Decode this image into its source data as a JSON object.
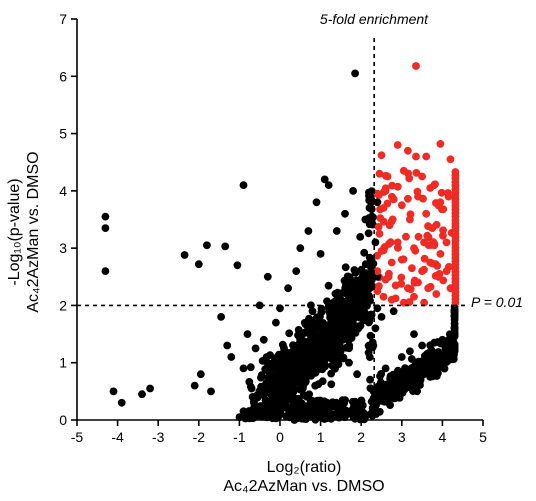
{
  "chart_data": {
    "type": "scatter",
    "xlabel_line1": "Log₂(ratio)",
    "xlabel_line2": "Ac₄2AzMan vs. DMSO",
    "ylabel_line1": "-Log₁₀(p-value)",
    "ylabel_line2": "Ac₄2AzMan vs. DMSO",
    "xlim": [
      -5,
      5
    ],
    "ylim": [
      0,
      7
    ],
    "xticks": [
      "-5",
      "-4",
      "-3",
      "-2",
      "-1",
      "0",
      "1",
      "2",
      "3",
      "4",
      "5"
    ],
    "yticks": [
      "0",
      "1",
      "2",
      "3",
      "4",
      "5",
      "6",
      "7"
    ],
    "colors": {
      "significant": "#ef2b24",
      "other": "#000000"
    },
    "vline": {
      "x": 2.32,
      "label": "5-fold enrichment"
    },
    "hline": {
      "y": 2.0,
      "label": "P = 0.01"
    },
    "series": [
      {
        "points": [
          [
            -4.3,
            3.55
          ],
          [
            -4.3,
            3.35
          ],
          [
            -4.3,
            2.6
          ],
          [
            -4.1,
            0.5
          ],
          [
            -3.9,
            0.3
          ],
          [
            -3.4,
            0.45
          ],
          [
            -3.2,
            0.55
          ],
          [
            -2.35,
            2.88
          ],
          [
            -2.1,
            0.6
          ],
          [
            -1.95,
            0.8
          ],
          [
            -1.7,
            0.5
          ],
          [
            -2.0,
            2.72
          ],
          [
            -1.8,
            3.05
          ],
          [
            -1.35,
            3.03
          ],
          [
            -1.05,
            2.7
          ],
          [
            -1.45,
            1.8
          ],
          [
            -1.3,
            1.3
          ],
          [
            -1.2,
            1.1
          ],
          [
            -0.9,
            0.9
          ],
          [
            -0.9,
            4.1
          ],
          [
            -0.5,
            2.0
          ],
          [
            -0.3,
            2.5
          ],
          [
            -0.6,
            1.25
          ],
          [
            -0.7,
            0.55
          ],
          [
            1.85,
            6.05
          ],
          [
            1.1,
            4.2
          ],
          [
            1.2,
            4.1
          ],
          [
            0.9,
            3.8
          ],
          [
            1.6,
            3.6
          ],
          [
            1.8,
            4.0
          ],
          [
            1.4,
            3.3
          ],
          [
            0.7,
            3.3
          ],
          [
            0.5,
            3.0
          ],
          [
            0.4,
            2.6
          ],
          [
            0.2,
            2.3
          ],
          [
            1.0,
            2.9
          ],
          [
            2.1,
            3.5
          ],
          [
            2.2,
            2.7
          ],
          [
            0.0,
            1.95
          ],
          [
            -0.1,
            1.7
          ],
          [
            0.3,
            0.05
          ],
          [
            0.6,
            0.1
          ],
          [
            -0.2,
            0.2
          ],
          [
            1.5,
            0.3
          ],
          [
            2.0,
            0.25
          ],
          [
            3.0,
            1.1
          ],
          [
            3.5,
            1.3
          ],
          [
            4.2,
            1.45
          ],
          [
            4.3,
            1.8
          ],
          [
            4.3,
            1.6
          ],
          [
            2.8,
            1.9
          ],
          [
            2.5,
            1.8
          ],
          [
            3.3,
            1.5
          ],
          [
            3.8,
            1.35
          ],
          [
            4.0,
            1.4
          ],
          [
            2.9,
            0.7
          ],
          [
            2.6,
            0.9
          ],
          [
            3.2,
            1.2
          ],
          [
            3.6,
            1.0
          ],
          [
            2.4,
            0.5
          ],
          [
            1.7,
            1.0
          ],
          [
            1.9,
            0.8
          ],
          [
            2.3,
            1.3
          ],
          [
            2.4,
            3.8
          ],
          [
            2.4,
            2.5
          ],
          [
            2.35,
            3.1
          ],
          [
            2.4,
            1.95
          ],
          [
            2.35,
            1.6
          ],
          [
            -0.8,
            1.5
          ],
          [
            -0.4,
            1.4
          ],
          [
            0.1,
            1.2
          ],
          [
            0.8,
            1.9
          ]
        ]
      },
      {
        "points": [
          [
            3.35,
            6.18
          ],
          [
            2.9,
            4.8
          ],
          [
            3.15,
            4.7
          ],
          [
            3.35,
            4.6
          ],
          [
            3.6,
            4.6
          ],
          [
            3.95,
            4.82
          ],
          [
            2.5,
            4.62
          ],
          [
            2.65,
            4.25
          ],
          [
            3.05,
            4.35
          ],
          [
            3.5,
            4.25
          ],
          [
            3.8,
            4.1
          ],
          [
            4.2,
            4.55
          ],
          [
            2.4,
            3.95
          ],
          [
            2.55,
            3.7
          ],
          [
            2.8,
            3.85
          ],
          [
            3.0,
            3.75
          ],
          [
            3.2,
            3.5
          ],
          [
            3.4,
            3.9
          ],
          [
            3.6,
            3.6
          ],
          [
            3.75,
            3.35
          ],
          [
            3.95,
            3.8
          ],
          [
            4.1,
            3.1
          ],
          [
            2.45,
            3.25
          ],
          [
            2.7,
            3.4
          ],
          [
            2.9,
            3.1
          ],
          [
            3.1,
            3.2
          ],
          [
            3.3,
            3.0
          ],
          [
            3.55,
            3.1
          ],
          [
            3.8,
            3.05
          ],
          [
            3.95,
            2.9
          ],
          [
            2.5,
            2.95
          ],
          [
            2.75,
            2.75
          ],
          [
            3.0,
            2.8
          ],
          [
            3.25,
            2.65
          ],
          [
            3.5,
            2.6
          ],
          [
            3.7,
            2.75
          ],
          [
            3.9,
            2.5
          ],
          [
            4.1,
            2.6
          ],
          [
            2.4,
            2.6
          ],
          [
            2.6,
            2.45
          ],
          [
            2.85,
            2.35
          ],
          [
            3.15,
            2.3
          ],
          [
            3.4,
            2.4
          ],
          [
            3.65,
            2.3
          ],
          [
            3.85,
            2.2
          ],
          [
            2.55,
            2.15
          ],
          [
            2.75,
            2.1
          ],
          [
            3.05,
            2.05
          ],
          [
            2.4,
            2.25
          ],
          [
            3.3,
            2.15
          ],
          [
            3.55,
            2.05
          ],
          [
            4.2,
            2.3
          ],
          [
            4.15,
            3.9
          ],
          [
            2.6,
            4.0
          ],
          [
            2.45,
            4.3
          ],
          [
            3.7,
            4.05
          ]
        ]
      }
    ]
  }
}
